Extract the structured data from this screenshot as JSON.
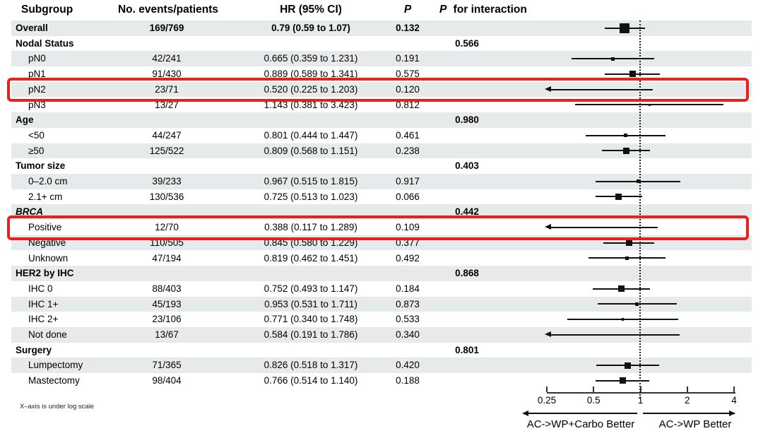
{
  "header": {
    "col_subgroup": "Subgroup",
    "col_events": "No. events/patients",
    "col_hr": "HR (95% CI)",
    "col_p": "P",
    "col_p_interaction_p": "P",
    "col_p_interaction_rest": "for interaction"
  },
  "footnote": "X–axis is under log scale",
  "colors": {
    "row_shade": "#e7eaeb",
    "highlight_box": "#e8211b",
    "ink": "#000000"
  },
  "chart_data": {
    "type": "forest",
    "x_scale": "log",
    "x_ticks": [
      "0.25",
      "0.5",
      "1",
      "2",
      "4"
    ],
    "x_tick_values": [
      0.25,
      0.5,
      1,
      2,
      4
    ],
    "reference_line": 1,
    "clamp_min": 0.25,
    "grid": false,
    "direction_labels": {
      "left": "AC->WP+Carbo Better",
      "right": "AC->WP Better"
    },
    "columns": [
      "Subgroup",
      "No. events/patients",
      "HR (95% CI)",
      "P",
      "P for interaction"
    ],
    "rows": [
      {
        "label": "Overall",
        "type": "overall",
        "events": "169/769",
        "hr_text": "0.79 (0.59 to 1.07)",
        "p": "0.132",
        "p_interaction": "",
        "hr": 0.79,
        "lo": 0.59,
        "hi": 1.07,
        "marker": "large",
        "shaded": true,
        "highlighted": false,
        "italic": false
      },
      {
        "label": "Nodal Status",
        "type": "group",
        "events": "",
        "hr_text": "",
        "p": "",
        "p_interaction": "0.566",
        "shaded": false,
        "highlighted": false,
        "italic": false
      },
      {
        "label": "pN0",
        "type": "item",
        "events": "42/241",
        "hr_text": "0.665 (0.359 to 1.231)",
        "p": "0.191",
        "p_interaction": "",
        "hr": 0.665,
        "lo": 0.359,
        "hi": 1.231,
        "marker": "small",
        "shaded": true,
        "highlighted": false,
        "italic": false
      },
      {
        "label": "pN1",
        "type": "item",
        "events": "91/430",
        "hr_text": "0.889 (0.589 to 1.341)",
        "p": "0.575",
        "p_interaction": "",
        "hr": 0.889,
        "lo": 0.589,
        "hi": 1.341,
        "marker": "medium",
        "shaded": false,
        "highlighted": false,
        "italic": false
      },
      {
        "label": "pN2",
        "type": "item",
        "events": "23/71",
        "hr_text": "0.520 (0.225 to 1.203)",
        "p": "0.120",
        "p_interaction": "",
        "hr": 0.52,
        "lo": 0.225,
        "hi": 1.203,
        "marker": "none",
        "shaded": true,
        "highlighted": true,
        "italic": false
      },
      {
        "label": "pN3",
        "type": "item",
        "events": "13/27",
        "hr_text": "1.143 (0.381 to 3.423)",
        "p": "0.812",
        "p_interaction": "",
        "hr": 1.143,
        "lo": 0.381,
        "hi": 3.423,
        "marker": "tiny",
        "shaded": false,
        "highlighted": false,
        "italic": false
      },
      {
        "label": "Age",
        "type": "group",
        "events": "",
        "hr_text": "",
        "p": "",
        "p_interaction": "0.980",
        "shaded": true,
        "highlighted": false,
        "italic": false
      },
      {
        "label": "<50",
        "type": "item",
        "events": "44/247",
        "hr_text": "0.801 (0.444 to 1.447)",
        "p": "0.461",
        "p_interaction": "",
        "hr": 0.801,
        "lo": 0.444,
        "hi": 1.447,
        "marker": "small",
        "shaded": false,
        "highlighted": false,
        "italic": false
      },
      {
        "label": "≥50",
        "type": "item",
        "events": "125/522",
        "hr_text": "0.809 (0.568 to 1.151)",
        "p": "0.238",
        "p_interaction": "",
        "hr": 0.809,
        "lo": 0.568,
        "hi": 1.151,
        "marker": "medium",
        "shaded": true,
        "highlighted": false,
        "italic": false
      },
      {
        "label": "Tumor size",
        "type": "group",
        "events": "",
        "hr_text": "",
        "p": "",
        "p_interaction": "0.403",
        "shaded": false,
        "highlighted": false,
        "italic": false
      },
      {
        "label": "0–2.0 cm",
        "type": "item",
        "events": "39/233",
        "hr_text": "0.967 (0.515 to 1.815)",
        "p": "0.917",
        "p_interaction": "",
        "hr": 0.967,
        "lo": 0.515,
        "hi": 1.815,
        "marker": "small",
        "shaded": true,
        "highlighted": false,
        "italic": false
      },
      {
        "label": "2.1+ cm",
        "type": "item",
        "events": "130/536",
        "hr_text": "0.725 (0.513 to 1.023)",
        "p": "0.066",
        "p_interaction": "",
        "hr": 0.725,
        "lo": 0.513,
        "hi": 1.023,
        "marker": "medium",
        "shaded": false,
        "highlighted": false,
        "italic": false
      },
      {
        "label": "BRCA",
        "type": "group",
        "events": "",
        "hr_text": "",
        "p": "",
        "p_interaction": "0.442",
        "shaded": true,
        "highlighted": false,
        "italic": true
      },
      {
        "label": "Positive",
        "type": "item",
        "events": "12/70",
        "hr_text": "0.388 (0.117 to 1.289)",
        "p": "0.109",
        "p_interaction": "",
        "hr": 0.388,
        "lo": 0.117,
        "hi": 1.289,
        "marker": "none",
        "shaded": false,
        "highlighted": true,
        "italic": false
      },
      {
        "label": "Negative",
        "type": "item",
        "events": "110/505",
        "hr_text": "0.845 (0.580 to 1.229)",
        "p": "0.377",
        "p_interaction": "",
        "hr": 0.845,
        "lo": 0.58,
        "hi": 1.229,
        "marker": "medium",
        "shaded": true,
        "highlighted": false,
        "italic": false
      },
      {
        "label": "Unknown",
        "type": "item",
        "events": "47/194",
        "hr_text": "0.819 (0.462 to 1.451)",
        "p": "0.492",
        "p_interaction": "",
        "hr": 0.819,
        "lo": 0.462,
        "hi": 1.451,
        "marker": "small",
        "shaded": false,
        "highlighted": false,
        "italic": false
      },
      {
        "label": "HER2 by IHC",
        "type": "group",
        "events": "",
        "hr_text": "",
        "p": "",
        "p_interaction": "0.868",
        "shaded": true,
        "highlighted": false,
        "italic": false
      },
      {
        "label": "IHC 0",
        "type": "item",
        "events": "88/403",
        "hr_text": "0.752 (0.493 to 1.147)",
        "p": "0.184",
        "p_interaction": "",
        "hr": 0.752,
        "lo": 0.493,
        "hi": 1.147,
        "marker": "medium",
        "shaded": false,
        "highlighted": false,
        "italic": false
      },
      {
        "label": "IHC 1+",
        "type": "item",
        "events": "45/193",
        "hr_text": "0.953 (0.531 to 1.711)",
        "p": "0.873",
        "p_interaction": "",
        "hr": 0.953,
        "lo": 0.531,
        "hi": 1.711,
        "marker": "small",
        "shaded": true,
        "highlighted": false,
        "italic": false
      },
      {
        "label": "IHC 2+",
        "type": "item",
        "events": "23/106",
        "hr_text": "0.771 (0.340 to 1.748)",
        "p": "0.533",
        "p_interaction": "",
        "hr": 0.771,
        "lo": 0.34,
        "hi": 1.748,
        "marker": "tiny",
        "shaded": false,
        "highlighted": false,
        "italic": false
      },
      {
        "label": "Not done",
        "type": "item",
        "events": "13/67",
        "hr_text": "0.584 (0.191 to 1.786)",
        "p": "0.340",
        "p_interaction": "",
        "hr": 0.584,
        "lo": 0.191,
        "hi": 1.786,
        "marker": "none",
        "shaded": true,
        "highlighted": false,
        "italic": false
      },
      {
        "label": "Surgery",
        "type": "group",
        "events": "",
        "hr_text": "",
        "p": "",
        "p_interaction": "0.801",
        "shaded": false,
        "highlighted": false,
        "italic": false
      },
      {
        "label": "Lumpectomy",
        "type": "item",
        "events": "71/365",
        "hr_text": "0.826 (0.518 to 1.317)",
        "p": "0.420",
        "p_interaction": "",
        "hr": 0.826,
        "lo": 0.518,
        "hi": 1.317,
        "marker": "medium",
        "shaded": true,
        "highlighted": false,
        "italic": false
      },
      {
        "label": "Mastectomy",
        "type": "item",
        "events": "98/404",
        "hr_text": "0.766 (0.514 to 1.140)",
        "p": "0.188",
        "p_interaction": "",
        "hr": 0.766,
        "lo": 0.514,
        "hi": 1.14,
        "marker": "medium",
        "shaded": false,
        "highlighted": false,
        "italic": false
      }
    ]
  }
}
